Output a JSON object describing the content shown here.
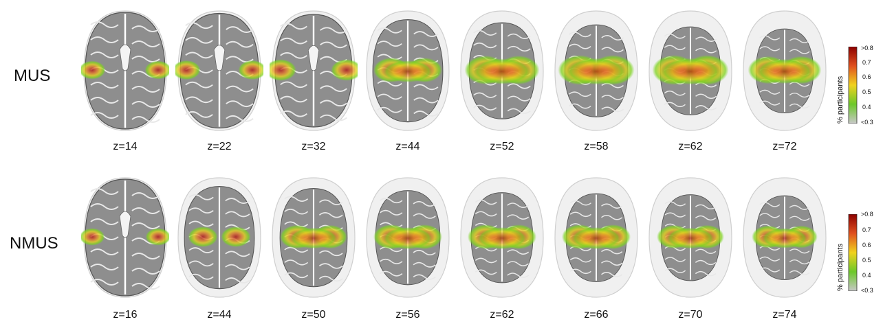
{
  "rows": [
    {
      "label": "MUS",
      "slices": [
        {
          "z": "z=14",
          "ghost": 0.0,
          "heat": 0.35
        },
        {
          "z": "z=22",
          "ghost": 0.05,
          "heat": 0.4
        },
        {
          "z": "z=32",
          "ghost": 0.1,
          "heat": 0.5
        },
        {
          "z": "z=44",
          "ghost": 0.35,
          "heat": 0.65
        },
        {
          "z": "z=52",
          "ghost": 0.5,
          "heat": 0.85
        },
        {
          "z": "z=58",
          "ghost": 0.6,
          "heat": 0.9
        },
        {
          "z": "z=62",
          "ghost": 0.7,
          "heat": 0.9
        },
        {
          "z": "z=72",
          "ghost": 0.8,
          "heat": 0.8
        }
      ],
      "colorbar": {
        "title": "% participants",
        "ticks": [
          ">0.8",
          "0.7",
          "0.6",
          "0.5",
          "0.4",
          "<0.3"
        ]
      }
    },
    {
      "label": "NMUS",
      "slices": [
        {
          "z": "z=16",
          "ghost": 0.0,
          "heat": 0.3
        },
        {
          "z": "z=44",
          "ghost": 0.35,
          "heat": 0.45
        },
        {
          "z": "z=50",
          "ghost": 0.45,
          "heat": 0.6
        },
        {
          "z": "z=56",
          "ghost": 0.55,
          "heat": 0.65
        },
        {
          "z": "z=62",
          "ghost": 0.65,
          "heat": 0.65
        },
        {
          "z": "z=66",
          "ghost": 0.7,
          "heat": 0.65
        },
        {
          "z": "z=70",
          "ghost": 0.75,
          "heat": 0.6
        },
        {
          "z": "z=74",
          "ghost": 0.8,
          "heat": 0.55
        }
      ],
      "colorbar": {
        "title": "% participants",
        "ticks": [
          ">0.8",
          "0.7",
          "0.6",
          "0.5",
          "0.4",
          "<0.3"
        ]
      }
    }
  ],
  "colors": {
    "low": "#b5b5b5",
    "green": "#7ed321",
    "yellow": "#e6d21a",
    "orange": "#e8792a",
    "red": "#b31212"
  }
}
